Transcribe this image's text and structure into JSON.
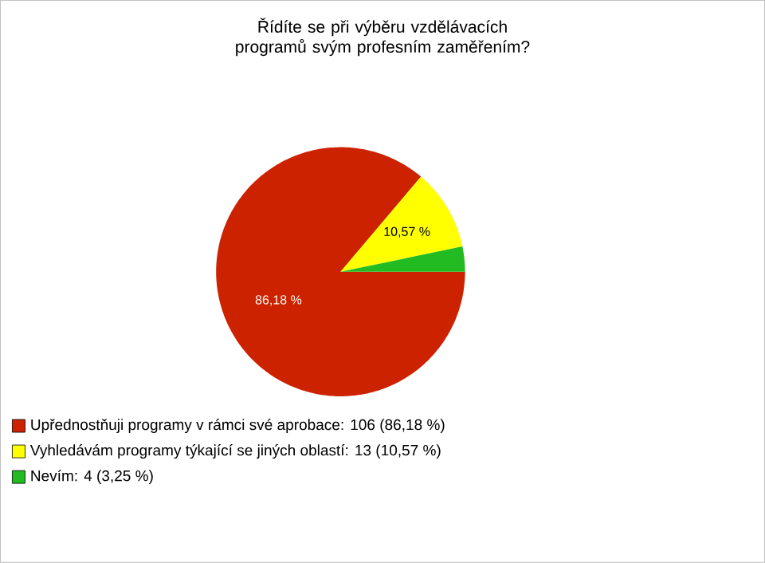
{
  "chart_data": {
    "type": "pie",
    "title": "Řídíte se při výběru vzdělávacích programů svým profesním zaměřením?",
    "categories": [
      "Upřednostňuji programy v rámci své aprobace: 106 (86,18 %)",
      "Vyhledávám programy týkající se jiných oblastí: 13 (10,57 %)",
      "Nevím: 4 (3,25 %)"
    ],
    "values": [
      86.18,
      10.57,
      3.25
    ],
    "value_labels": [
      "86,18 %",
      "10,57 %",
      null
    ],
    "colors": [
      "#cc2200",
      "#ffff00",
      "#22bb22"
    ],
    "legend": "bottom"
  }
}
